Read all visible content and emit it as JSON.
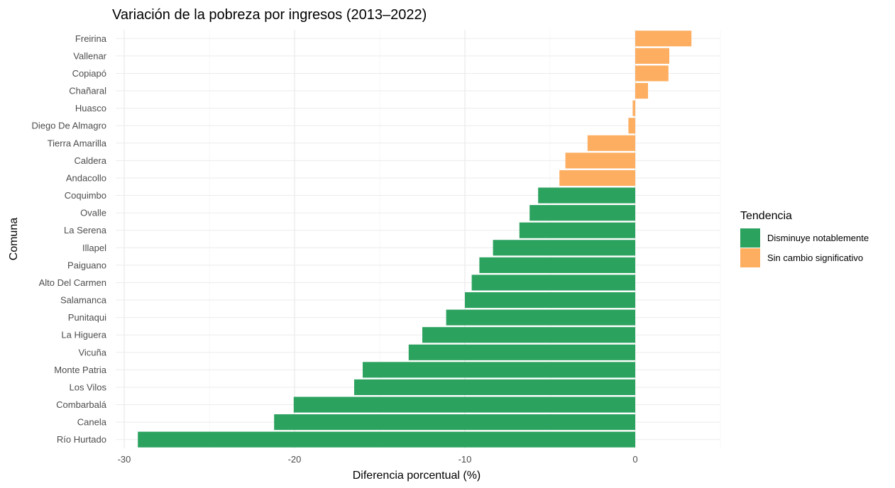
{
  "chart_data": {
    "type": "bar",
    "orientation": "horizontal",
    "title": "Variación de la pobreza por ingresos (2013–2022)",
    "xlabel": "Diferencia porcentual (%)",
    "ylabel": "Comuna",
    "xlim": [
      -30.5,
      5
    ],
    "xticks": [
      -30,
      -20,
      -10,
      0
    ],
    "grid": true,
    "legend_title": "Tendencia",
    "legend_position": "right",
    "legend": [
      {
        "key": "dis",
        "label": "Disminuye notablemente",
        "color": "#2ca25f"
      },
      {
        "key": "sin",
        "label": "Sin cambio significativo",
        "color": "#fdae61"
      }
    ],
    "categories": [
      "Freirina",
      "Vallenar",
      "Copiapó",
      "Chañaral",
      "Huasco",
      "Diego De Almagro",
      "Tierra Amarilla",
      "Caldera",
      "Andacollo",
      "Coquimbo",
      "Ovalle",
      "La Serena",
      "Illapel",
      "Paiguano",
      "Alto Del Carmen",
      "Salamanca",
      "Punitaqui",
      "La Higuera",
      "Vicuña",
      "Monte Patria",
      "Los Vilos",
      "Combarbalá",
      "Canela",
      "Río Hurtado"
    ],
    "values": [
      3.3,
      2.0,
      1.95,
      0.75,
      -0.15,
      -0.4,
      -2.8,
      -4.1,
      -4.45,
      -5.7,
      -6.2,
      -6.8,
      -8.35,
      -9.15,
      -9.6,
      -10.0,
      -11.1,
      -12.5,
      -13.3,
      -16.0,
      -16.5,
      -20.05,
      -21.2,
      -29.2
    ],
    "trend": [
      "sin",
      "sin",
      "sin",
      "sin",
      "sin",
      "sin",
      "sin",
      "sin",
      "sin",
      "dis",
      "dis",
      "dis",
      "dis",
      "dis",
      "dis",
      "dis",
      "dis",
      "dis",
      "dis",
      "dis",
      "dis",
      "dis",
      "dis",
      "dis"
    ]
  }
}
